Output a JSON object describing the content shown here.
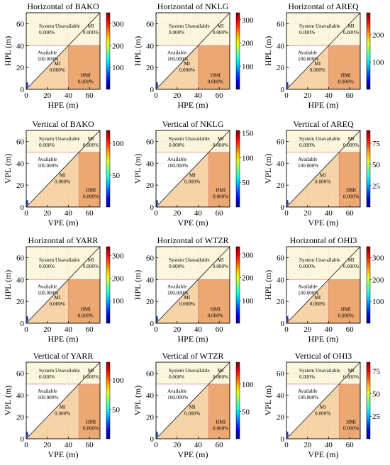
{
  "chart_data": [
    {
      "type": "heatmap",
      "title": "Horizontal of BAKO",
      "xlabel": "HPE (m)",
      "ylabel": "HPL (m)",
      "xlim": [
        0,
        70
      ],
      "ylim": [
        0,
        70
      ],
      "xticks": [
        0,
        20,
        40,
        60
      ],
      "yticks": [
        0,
        20,
        40,
        60
      ],
      "alarm_limit": 40,
      "colorbar_ticks": [
        100,
        200,
        300
      ],
      "colorbar_max": 350,
      "regions": {
        "unavailable_label": "System Unavailable",
        "unavailable_pct": "0.000%",
        "mi_upper_label": "MI",
        "mi_upper_pct": "0.000%",
        "available_label": "Available",
        "available_pct": "100.000%",
        "mi_lower_label": "MI",
        "mi_lower_pct": "0.000%",
        "hmi_label": "HMI",
        "hmi_pct": "0.000%"
      }
    },
    {
      "type": "heatmap",
      "title": "Horizontal of NKLG",
      "xlabel": "HPE (m)",
      "ylabel": "HPL (m)",
      "xlim": [
        0,
        70
      ],
      "ylim": [
        0,
        70
      ],
      "xticks": [
        0,
        20,
        40,
        60
      ],
      "yticks": [
        0,
        20,
        40,
        60
      ],
      "alarm_limit": 40,
      "colorbar_ticks": [
        100,
        200,
        300
      ],
      "colorbar_max": 330,
      "regions": {
        "unavailable_label": "System Unavailable",
        "unavailable_pct": "0.000%",
        "mi_upper_label": "MI",
        "mi_upper_pct": "0.000%",
        "available_label": "Available",
        "available_pct": "100.000%",
        "mi_lower_label": "MI",
        "mi_lower_pct": "0.000%",
        "hmi_label": "HMI",
        "hmi_pct": "0.000%"
      }
    },
    {
      "type": "heatmap",
      "title": "Horizontal of AREQ",
      "xlabel": "HPE (m)",
      "ylabel": "HPL (m)",
      "xlim": [
        0,
        70
      ],
      "ylim": [
        0,
        70
      ],
      "xticks": [
        0,
        20,
        40,
        60
      ],
      "yticks": [
        0,
        20,
        40,
        60
      ],
      "alarm_limit": 40,
      "colorbar_ticks": [
        100,
        200
      ],
      "colorbar_max": 280,
      "regions": {
        "unavailable_label": "System Unavailable",
        "unavailable_pct": "0.000%",
        "mi_upper_label": "MI",
        "mi_upper_pct": "0.000%",
        "available_label": "Available",
        "available_pct": "100.000%",
        "mi_lower_label": "MI",
        "mi_lower_pct": "0.000%",
        "hmi_label": "HMI",
        "hmi_pct": "0.000%"
      }
    },
    {
      "type": "heatmap",
      "title": "Vertical of BAKO",
      "xlabel": "VPE (m)",
      "ylabel": "VPL (m)",
      "xlim": [
        0,
        70
      ],
      "ylim": [
        0,
        70
      ],
      "xticks": [
        0,
        20,
        40,
        60
      ],
      "yticks": [
        0,
        20,
        40,
        60
      ],
      "alarm_limit": 50,
      "colorbar_ticks": [
        50,
        100
      ],
      "colorbar_max": 120,
      "regions": {
        "unavailable_label": "System Unavailable",
        "unavailable_pct": "0.000%",
        "mi_upper_label": "MI",
        "mi_upper_pct": "0.000%",
        "available_label": "Available",
        "available_pct": "100.000%",
        "mi_lower_label": "MI",
        "mi_lower_pct": "0.000%",
        "hmi_label": "HMI",
        "hmi_pct": "0.000%"
      }
    },
    {
      "type": "heatmap",
      "title": "Vertical of NKLG",
      "xlabel": "VPE (m)",
      "ylabel": "VPL (m)",
      "xlim": [
        0,
        70
      ],
      "ylim": [
        0,
        70
      ],
      "xticks": [
        0,
        20,
        40,
        60
      ],
      "yticks": [
        0,
        20,
        40,
        60
      ],
      "alarm_limit": 50,
      "colorbar_ticks": [
        50,
        100,
        150
      ],
      "colorbar_max": 155,
      "regions": {
        "unavailable_label": "System Unavailable",
        "unavailable_pct": "0.000%",
        "mi_upper_label": "MI",
        "mi_upper_pct": "0.000%",
        "available_label": "Available",
        "available_pct": "100.000%",
        "mi_lower_label": "MI",
        "mi_lower_pct": "0.000%",
        "hmi_label": "HMI",
        "hmi_pct": "0.000%"
      }
    },
    {
      "type": "heatmap",
      "title": "Vertical of AREQ",
      "xlabel": "VPE (m)",
      "ylabel": "VPL (m)",
      "xlim": [
        0,
        70
      ],
      "ylim": [
        0,
        70
      ],
      "xticks": [
        0,
        20,
        40,
        60
      ],
      "yticks": [
        0,
        20,
        40,
        60
      ],
      "alarm_limit": 50,
      "colorbar_ticks": [
        25,
        50,
        75
      ],
      "colorbar_max": 90,
      "regions": {
        "unavailable_label": "System Unavailable",
        "unavailable_pct": "0.000%",
        "mi_upper_label": "MI",
        "mi_upper_pct": "0.000%",
        "available_label": "Available",
        "available_pct": "100.000%",
        "mi_lower_label": "MI",
        "mi_lower_pct": "0.000%",
        "hmi_label": "HMI",
        "hmi_pct": "0.000%"
      }
    },
    {
      "type": "heatmap",
      "title": "Horizontal of YARR",
      "xlabel": "HPE (m)",
      "ylabel": "HPL (m)",
      "xlim": [
        0,
        70
      ],
      "ylim": [
        0,
        70
      ],
      "xticks": [
        0,
        20,
        40,
        60
      ],
      "yticks": [
        0,
        20,
        40,
        60
      ],
      "alarm_limit": 40,
      "colorbar_ticks": [
        100,
        200,
        300
      ],
      "colorbar_max": 340,
      "regions": {
        "unavailable_label": "System Unavailable",
        "unavailable_pct": "0.000%",
        "mi_upper_label": "MI",
        "mi_upper_pct": "0.000%",
        "available_label": "Available",
        "available_pct": "100.000%",
        "mi_lower_label": "MI",
        "mi_lower_pct": "0.000%",
        "hmi_label": "HMI",
        "hmi_pct": "0.000%"
      }
    },
    {
      "type": "heatmap",
      "title": "Horizontal of WTZR",
      "xlabel": "HPE (m)",
      "ylabel": "HPL (m)",
      "xlim": [
        0,
        70
      ],
      "ylim": [
        0,
        70
      ],
      "xticks": [
        0,
        20,
        40,
        60
      ],
      "yticks": [
        0,
        20,
        40,
        60
      ],
      "alarm_limit": 40,
      "colorbar_ticks": [
        100,
        200,
        300
      ],
      "colorbar_max": 335,
      "regions": {
        "unavailable_label": "System Unavailable",
        "unavailable_pct": "0.000%",
        "mi_upper_label": "MI",
        "mi_upper_pct": "0.000%",
        "available_label": "Available",
        "available_pct": "100.000%",
        "mi_lower_label": "MI",
        "mi_lower_pct": "0.000%",
        "hmi_label": "HMI",
        "hmi_pct": "0.000%"
      }
    },
    {
      "type": "heatmap",
      "title": "Horizontal of OHI3",
      "xlabel": "HPE (m)",
      "ylabel": "HPL (m)",
      "xlim": [
        0,
        70
      ],
      "ylim": [
        0,
        70
      ],
      "xticks": [
        0,
        20,
        40,
        60
      ],
      "yticks": [
        0,
        20,
        40,
        60
      ],
      "alarm_limit": 40,
      "colorbar_ticks": [
        100,
        200,
        300
      ],
      "colorbar_max": 350,
      "regions": {
        "unavailable_label": "System Unavailable",
        "unavailable_pct": "0.000%",
        "mi_upper_label": "MI",
        "mi_upper_pct": "0.000%",
        "available_label": "Available",
        "available_pct": "100.000%",
        "mi_lower_label": "MI",
        "mi_lower_pct": "0.000%",
        "hmi_label": "HMI",
        "hmi_pct": "0.000%"
      }
    },
    {
      "type": "heatmap",
      "title": "Vertical of YARR",
      "xlabel": "VPE (m)",
      "ylabel": "VPL (m)",
      "xlim": [
        0,
        70
      ],
      "ylim": [
        0,
        70
      ],
      "xticks": [
        0,
        20,
        40,
        60
      ],
      "yticks": [
        0,
        20,
        40,
        60
      ],
      "alarm_limit": 50,
      "colorbar_ticks": [
        50,
        100
      ],
      "colorbar_max": 130,
      "regions": {
        "unavailable_label": "System Unavailable",
        "unavailable_pct": "0.000%",
        "mi_upper_label": "MI",
        "mi_upper_pct": "0.000%",
        "available_label": "Available",
        "available_pct": "100.000%",
        "mi_lower_label": "MI",
        "mi_lower_pct": "0.000%",
        "hmi_label": "HMI",
        "hmi_pct": "0.000%"
      }
    },
    {
      "type": "heatmap",
      "title": "Vertical of WTZR",
      "xlabel": "VPE (m)",
      "ylabel": "VPL (m)",
      "xlim": [
        0,
        70
      ],
      "ylim": [
        0,
        70
      ],
      "xticks": [
        0,
        20,
        40,
        60
      ],
      "yticks": [
        0,
        20,
        40,
        60
      ],
      "alarm_limit": 50,
      "colorbar_ticks": [
        50,
        100
      ],
      "colorbar_max": 140,
      "regions": {
        "unavailable_label": "System Unavailable",
        "unavailable_pct": "0.000%",
        "mi_upper_label": "MI",
        "mi_upper_pct": "0.000%",
        "available_label": "Available",
        "available_pct": "100.000%",
        "mi_lower_label": "MI",
        "mi_lower_pct": "0.000%",
        "hmi_label": "HMI",
        "hmi_pct": "0.000%"
      }
    },
    {
      "type": "heatmap",
      "title": "Vertical of OHI3",
      "xlabel": "VPE (m)",
      "ylabel": "VPL (m)",
      "xlim": [
        0,
        70
      ],
      "ylim": [
        0,
        70
      ],
      "xticks": [
        0,
        20,
        40,
        60
      ],
      "yticks": [
        0,
        20,
        40,
        60
      ],
      "alarm_limit": 50,
      "colorbar_ticks": [
        25,
        50,
        75
      ],
      "colorbar_max": 85,
      "regions": {
        "unavailable_label": "System Unavailable",
        "unavailable_pct": "0.000%",
        "mi_upper_label": "MI",
        "mi_upper_pct": "0.000%",
        "available_label": "Available",
        "available_pct": "100.000%",
        "mi_lower_label": "MI",
        "mi_lower_pct": "0.000%",
        "hmi_label": "HMI",
        "hmi_pct": "0.000%"
      }
    }
  ],
  "colors": {
    "unavailable_fill": "#fcf7dc",
    "available_fill": "#f7ddb6",
    "mi_fill": "#f6d4a8",
    "hmi_fill": "#eda872",
    "alarm_line": "#e08080",
    "data_points": "#1f3fc8"
  }
}
